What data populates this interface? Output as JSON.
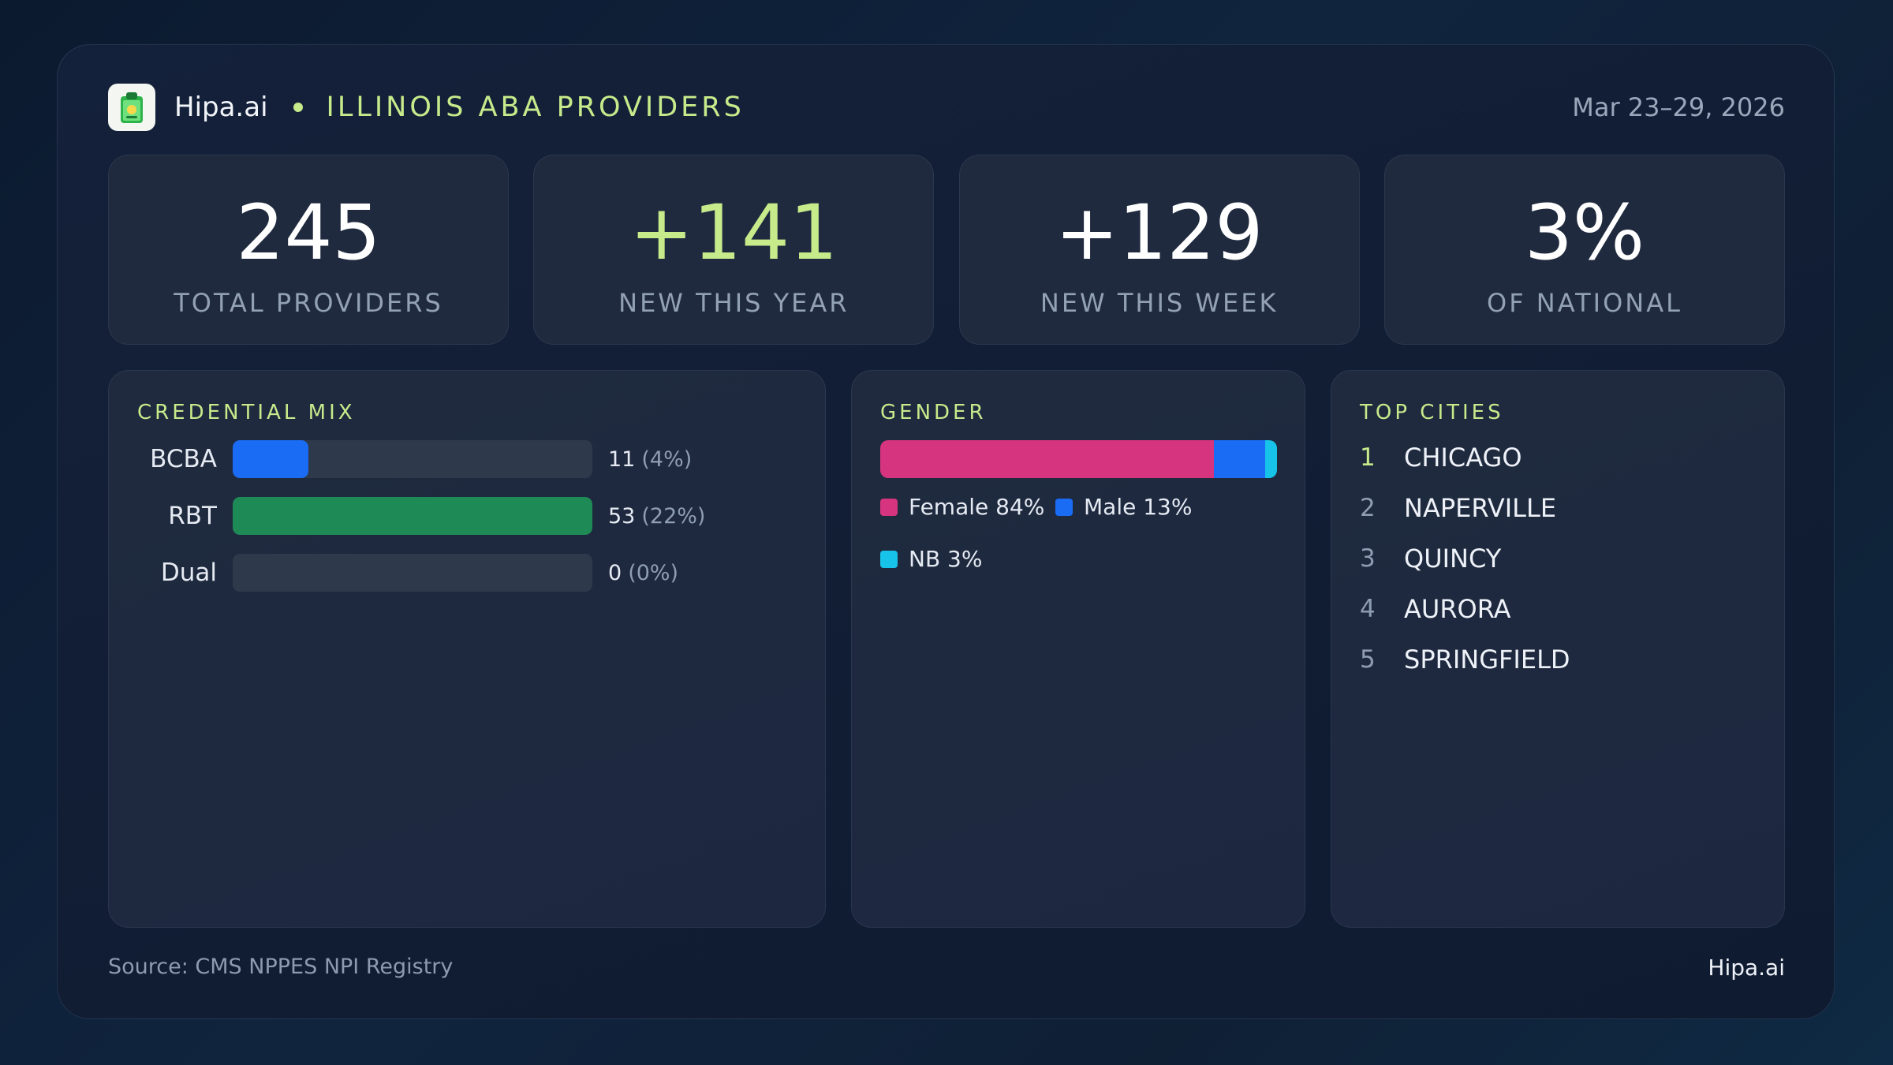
{
  "header": {
    "brand": "Hipa.ai",
    "region": "ILLINOIS ABA PROVIDERS",
    "date_range": "Mar 23–29, 2026",
    "logo_icon": "clipboard-icon"
  },
  "kpis": [
    {
      "value": "245",
      "label": "TOTAL PROVIDERS"
    },
    {
      "value": "+141",
      "label": "NEW THIS YEAR"
    },
    {
      "value": "+129",
      "label": "NEW THIS WEEK"
    },
    {
      "value": "3%",
      "label": "OF NATIONAL"
    }
  ],
  "credential": {
    "title": "CREDENTIAL MIX",
    "rows": [
      {
        "name": "BCBA",
        "count": "11",
        "pct": "(4%)",
        "fill": 0.21,
        "color": "#1a6cf5"
      },
      {
        "name": "RBT",
        "count": "53",
        "pct": "(22%)",
        "fill": 1.0,
        "color": "#1e8a55"
      },
      {
        "name": "Dual",
        "count": "0",
        "pct": "(0%)",
        "fill": 0.0,
        "color": "#2e394c"
      }
    ]
  },
  "gender": {
    "title": "GENDER",
    "segments": [
      {
        "label": "Female 84%",
        "share": 0.84,
        "color": "#d6347f"
      },
      {
        "label": "Male 13%",
        "share": 0.13,
        "color": "#1a6cf5"
      },
      {
        "label": "NB 3%",
        "share": 0.03,
        "color": "#17c3e8"
      }
    ]
  },
  "cities": {
    "title": "TOP CITIES",
    "items": [
      {
        "rank": "1",
        "name": "CHICAGO"
      },
      {
        "rank": "2",
        "name": "NAPERVILLE"
      },
      {
        "rank": "3",
        "name": "QUINCY"
      },
      {
        "rank": "4",
        "name": "AURORA"
      },
      {
        "rank": "5",
        "name": "SPRINGFIELD"
      }
    ]
  },
  "footer": {
    "source": "Source: CMS NPPES NPI Registry",
    "brand": "Hipa.ai"
  }
}
